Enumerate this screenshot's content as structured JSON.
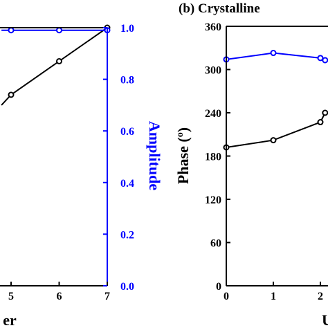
{
  "colors": {
    "black": "#000000",
    "blue": "#0000ff",
    "background": "#ffffff"
  },
  "chart_data": [
    {
      "type": "line",
      "title": "",
      "xlabel": "er",
      "xticks": [
        5,
        6,
        7
      ],
      "xlim": [
        4.8,
        7
      ],
      "y2label": "Amplitude",
      "y2ticks": [
        "0.0",
        "0.2",
        "0.4",
        "0.6",
        "0.8",
        "1.0"
      ],
      "y2lim": [
        0,
        1
      ],
      "grid": false,
      "series": [
        {
          "color": "#000000",
          "axis": "left",
          "x": [
            4.8,
            5,
            6,
            7
          ],
          "y": [
            0.7,
            0.74,
            0.87,
            1.0
          ]
        },
        {
          "color": "#0000ff",
          "axis": "right",
          "x": [
            4.8,
            5,
            6,
            7
          ],
          "y": [
            0.99,
            0.99,
            0.99,
            0.99
          ]
        }
      ]
    },
    {
      "type": "line",
      "title": "(b) Crystalline",
      "xlabel": "U",
      "xticks": [
        0,
        1,
        2
      ],
      "xlim": [
        0,
        2.1
      ],
      "ylabel": "Phase (°)",
      "ylabel_main": "Phase (",
      "ylabel_sup": "o",
      "ylabel_end": ")",
      "yticks": [
        0,
        60,
        120,
        180,
        240,
        300,
        360
      ],
      "ylim": [
        0,
        360
      ],
      "grid": false,
      "series": [
        {
          "color": "#0000ff",
          "x": [
            0,
            1,
            2,
            2.1
          ],
          "y": [
            314,
            323,
            316,
            313
          ]
        },
        {
          "color": "#000000",
          "x": [
            0,
            1,
            2,
            2.1
          ],
          "y": [
            192,
            202,
            227,
            240
          ]
        }
      ]
    }
  ]
}
